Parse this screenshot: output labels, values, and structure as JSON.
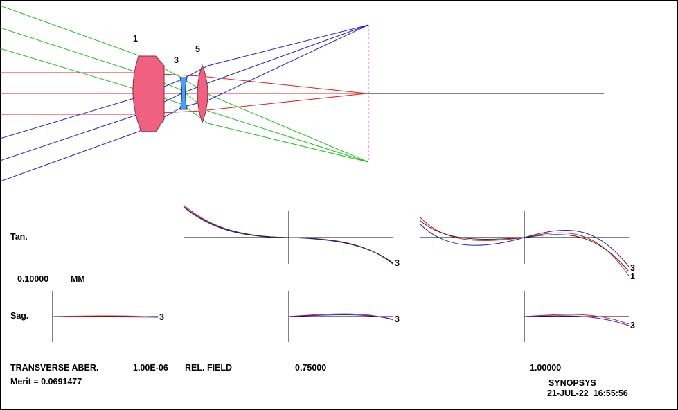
{
  "lens_labels": [
    "1",
    "3",
    "5"
  ],
  "plot": {
    "tan_label": "Tan.",
    "sag_label": "Sag.",
    "scale": "0.10000",
    "scale_unit": "MM",
    "curve_labels": [
      "3",
      "3",
      "3",
      "3",
      "1",
      "3"
    ]
  },
  "footer": {
    "title": "TRANSVERSE ABER.",
    "wavelength": "1.00E-06",
    "field_label": "REL. FIELD",
    "fields": [
      "0.75000",
      "1.00000"
    ],
    "merit": "Merit = 0.0691477",
    "program": "SYNOPSYS",
    "timestamp": "21-JUL-22  16:55:56"
  }
}
